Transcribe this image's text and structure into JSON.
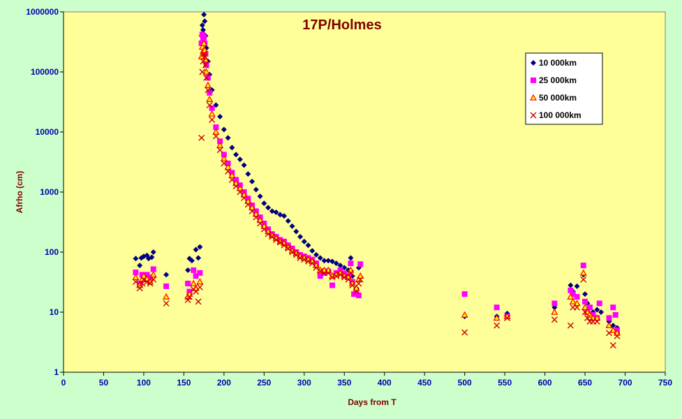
{
  "chart_data": {
    "type": "scatter",
    "title": "17P/Holmes",
    "xlabel": "Days from T",
    "ylabel": "Afrho (cm)",
    "xlim": [
      0,
      750
    ],
    "ylim": [
      1,
      1000000
    ],
    "yscale": "log",
    "x_ticks": [
      0,
      50,
      100,
      150,
      200,
      250,
      300,
      350,
      400,
      450,
      500,
      550,
      600,
      650,
      700,
      750
    ],
    "y_ticks": [
      1,
      10,
      100,
      1000,
      10000,
      100000,
      1000000
    ],
    "legend_position": "top-right",
    "grid": false,
    "background_color": "#ffff99",
    "page_color": "#ccffcc",
    "series": [
      {
        "name": "10 000km",
        "marker": "diamond",
        "color": "#000080",
        "points": [
          [
            90,
            78
          ],
          [
            95,
            60
          ],
          [
            97,
            80
          ],
          [
            100,
            85
          ],
          [
            104,
            88
          ],
          [
            106,
            78
          ],
          [
            110,
            82
          ],
          [
            112,
            100
          ],
          [
            128,
            42
          ],
          [
            155,
            50
          ],
          [
            157,
            78
          ],
          [
            160,
            72
          ],
          [
            165,
            110
          ],
          [
            168,
            80
          ],
          [
            170,
            122
          ],
          [
            172,
            400000
          ],
          [
            173,
            600000
          ],
          [
            174,
            500000
          ],
          [
            175,
            900000
          ],
          [
            176,
            700000
          ],
          [
            177,
            400000
          ],
          [
            178,
            250000
          ],
          [
            180,
            150000
          ],
          [
            182,
            90000
          ],
          [
            185,
            50000
          ],
          [
            190,
            28000
          ],
          [
            195,
            18000
          ],
          [
            200,
            11000
          ],
          [
            205,
            8000
          ],
          [
            210,
            5500
          ],
          [
            215,
            4200
          ],
          [
            220,
            3500
          ],
          [
            225,
            2800
          ],
          [
            230,
            2000
          ],
          [
            235,
            1500
          ],
          [
            240,
            1100
          ],
          [
            245,
            850
          ],
          [
            250,
            650
          ],
          [
            255,
            550
          ],
          [
            260,
            480
          ],
          [
            265,
            460
          ],
          [
            270,
            420
          ],
          [
            275,
            400
          ],
          [
            280,
            330
          ],
          [
            285,
            270
          ],
          [
            290,
            220
          ],
          [
            295,
            180
          ],
          [
            300,
            150
          ],
          [
            305,
            130
          ],
          [
            310,
            105
          ],
          [
            315,
            90
          ],
          [
            320,
            80
          ],
          [
            325,
            72
          ],
          [
            330,
            72
          ],
          [
            335,
            70
          ],
          [
            340,
            65
          ],
          [
            345,
            60
          ],
          [
            350,
            55
          ],
          [
            355,
            50
          ],
          [
            358,
            80
          ],
          [
            360,
            40
          ],
          [
            365,
            25
          ],
          [
            368,
            55
          ],
          [
            370,
            60
          ],
          [
            500,
            8.5
          ],
          [
            540,
            8.5
          ],
          [
            553,
            9.5
          ],
          [
            612,
            12
          ],
          [
            632,
            28
          ],
          [
            635,
            22
          ],
          [
            640,
            27
          ],
          [
            648,
            42
          ],
          [
            650,
            20
          ],
          [
            653,
            14
          ],
          [
            656,
            12
          ],
          [
            660,
            10
          ],
          [
            665,
            11
          ],
          [
            670,
            10
          ],
          [
            680,
            7
          ],
          [
            685,
            6
          ],
          [
            690,
            5.5
          ]
        ]
      },
      {
        "name": "25 000km",
        "marker": "square",
        "color": "#ff00ff",
        "points": [
          [
            90,
            46
          ],
          [
            95,
            30
          ],
          [
            98,
            42
          ],
          [
            100,
            38
          ],
          [
            104,
            42
          ],
          [
            108,
            38
          ],
          [
            112,
            52
          ],
          [
            128,
            27
          ],
          [
            155,
            30
          ],
          [
            157,
            22
          ],
          [
            162,
            50
          ],
          [
            165,
            40
          ],
          [
            170,
            45
          ],
          [
            172,
            300000
          ],
          [
            173,
            420000
          ],
          [
            174,
            350000
          ],
          [
            175,
            380000
          ],
          [
            176,
            300000
          ],
          [
            177,
            200000
          ],
          [
            178,
            130000
          ],
          [
            180,
            80000
          ],
          [
            182,
            45000
          ],
          [
            185,
            25000
          ],
          [
            190,
            12000
          ],
          [
            195,
            7000
          ],
          [
            200,
            4200
          ],
          [
            205,
            3000
          ],
          [
            210,
            2100
          ],
          [
            215,
            1600
          ],
          [
            220,
            1300
          ],
          [
            225,
            1000
          ],
          [
            230,
            780
          ],
          [
            235,
            600
          ],
          [
            240,
            480
          ],
          [
            245,
            380
          ],
          [
            250,
            300
          ],
          [
            255,
            240
          ],
          [
            260,
            200
          ],
          [
            265,
            180
          ],
          [
            270,
            160
          ],
          [
            275,
            150
          ],
          [
            280,
            130
          ],
          [
            285,
            115
          ],
          [
            290,
            100
          ],
          [
            295,
            90
          ],
          [
            300,
            85
          ],
          [
            305,
            80
          ],
          [
            310,
            75
          ],
          [
            315,
            65
          ],
          [
            320,
            40
          ],
          [
            325,
            45
          ],
          [
            330,
            48
          ],
          [
            335,
            28
          ],
          [
            340,
            45
          ],
          [
            345,
            50
          ],
          [
            350,
            44
          ],
          [
            355,
            40
          ],
          [
            358,
            65
          ],
          [
            360,
            32
          ],
          [
            362,
            20
          ],
          [
            365,
            20
          ],
          [
            368,
            19
          ],
          [
            370,
            63
          ],
          [
            500,
            20
          ],
          [
            540,
            12
          ],
          [
            553,
            8.5
          ],
          [
            612,
            14
          ],
          [
            632,
            23
          ],
          [
            635,
            20
          ],
          [
            640,
            18
          ],
          [
            648,
            60
          ],
          [
            650,
            15
          ],
          [
            653,
            10
          ],
          [
            656,
            12
          ],
          [
            660,
            9
          ],
          [
            665,
            8
          ],
          [
            668,
            14
          ],
          [
            680,
            8
          ],
          [
            685,
            12
          ],
          [
            688,
            9
          ],
          [
            690,
            5
          ]
        ]
      },
      {
        "name": "50 000km",
        "marker": "triangle",
        "color": "#ff0000",
        "points": [
          [
            90,
            38
          ],
          [
            95,
            28
          ],
          [
            98,
            35
          ],
          [
            100,
            40
          ],
          [
            104,
            36
          ],
          [
            108,
            32
          ],
          [
            112,
            42
          ],
          [
            128,
            18
          ],
          [
            155,
            18
          ],
          [
            157,
            20
          ],
          [
            162,
            30
          ],
          [
            165,
            25
          ],
          [
            170,
            32
          ],
          [
            172,
            180000
          ],
          [
            173,
            260000
          ],
          [
            174,
            220000
          ],
          [
            175,
            300000
          ],
          [
            176,
            230000
          ],
          [
            177,
            160000
          ],
          [
            178,
            100000
          ],
          [
            180,
            60000
          ],
          [
            182,
            35000
          ],
          [
            185,
            20000
          ],
          [
            190,
            10000
          ],
          [
            195,
            6000
          ],
          [
            200,
            3600
          ],
          [
            205,
            2600
          ],
          [
            210,
            1900
          ],
          [
            215,
            1400
          ],
          [
            220,
            1150
          ],
          [
            225,
            900
          ],
          [
            230,
            700
          ],
          [
            235,
            550
          ],
          [
            240,
            430
          ],
          [
            245,
            340
          ],
          [
            250,
            270
          ],
          [
            255,
            220
          ],
          [
            260,
            190
          ],
          [
            265,
            170
          ],
          [
            270,
            150
          ],
          [
            275,
            140
          ],
          [
            280,
            120
          ],
          [
            285,
            105
          ],
          [
            290,
            95
          ],
          [
            295,
            85
          ],
          [
            300,
            80
          ],
          [
            305,
            75
          ],
          [
            310,
            70
          ],
          [
            315,
            60
          ],
          [
            320,
            50
          ],
          [
            325,
            50
          ],
          [
            330,
            50
          ],
          [
            335,
            40
          ],
          [
            340,
            42
          ],
          [
            345,
            45
          ],
          [
            350,
            40
          ],
          [
            355,
            38
          ],
          [
            358,
            50
          ],
          [
            360,
            30
          ],
          [
            365,
            25
          ],
          [
            368,
            35
          ],
          [
            370,
            40
          ],
          [
            500,
            9
          ],
          [
            540,
            8
          ],
          [
            553,
            8.5
          ],
          [
            612,
            10
          ],
          [
            632,
            18
          ],
          [
            635,
            15
          ],
          [
            640,
            14
          ],
          [
            648,
            45
          ],
          [
            650,
            12
          ],
          [
            653,
            10
          ],
          [
            656,
            9
          ],
          [
            660,
            8
          ],
          [
            665,
            8
          ],
          [
            680,
            6
          ],
          [
            685,
            5
          ],
          [
            690,
            4.5
          ]
        ]
      },
      {
        "name": "100 000km",
        "marker": "x",
        "color": "#cc0000",
        "points": [
          [
            90,
            32
          ],
          [
            95,
            25
          ],
          [
            98,
            30
          ],
          [
            100,
            35
          ],
          [
            104,
            32
          ],
          [
            108,
            30
          ],
          [
            112,
            35
          ],
          [
            128,
            14
          ],
          [
            155,
            16
          ],
          [
            157,
            18
          ],
          [
            162,
            24
          ],
          [
            165,
            22
          ],
          [
            168,
            15
          ],
          [
            170,
            26
          ],
          [
            172,
            8000
          ],
          [
            173,
            100000
          ],
          [
            174,
            150000
          ],
          [
            175,
            200000
          ],
          [
            176,
            180000
          ],
          [
            177,
            130000
          ],
          [
            178,
            80000
          ],
          [
            180,
            50000
          ],
          [
            182,
            28000
          ],
          [
            185,
            16000
          ],
          [
            190,
            8500
          ],
          [
            195,
            5000
          ],
          [
            200,
            3000
          ],
          [
            205,
            2200
          ],
          [
            210,
            1600
          ],
          [
            215,
            1250
          ],
          [
            220,
            1000
          ],
          [
            225,
            800
          ],
          [
            230,
            620
          ],
          [
            235,
            480
          ],
          [
            240,
            380
          ],
          [
            245,
            300
          ],
          [
            250,
            240
          ],
          [
            255,
            200
          ],
          [
            260,
            180
          ],
          [
            265,
            160
          ],
          [
            270,
            145
          ],
          [
            275,
            130
          ],
          [
            280,
            115
          ],
          [
            285,
            100
          ],
          [
            290,
            90
          ],
          [
            295,
            80
          ],
          [
            300,
            75
          ],
          [
            305,
            70
          ],
          [
            310,
            65
          ],
          [
            315,
            55
          ],
          [
            320,
            48
          ],
          [
            325,
            45
          ],
          [
            330,
            45
          ],
          [
            335,
            38
          ],
          [
            340,
            40
          ],
          [
            345,
            42
          ],
          [
            350,
            38
          ],
          [
            355,
            35
          ],
          [
            358,
            45
          ],
          [
            360,
            28
          ],
          [
            365,
            22
          ],
          [
            368,
            30
          ],
          [
            370,
            35
          ],
          [
            500,
            4.6
          ],
          [
            540,
            6
          ],
          [
            553,
            8
          ],
          [
            612,
            7.5
          ],
          [
            632,
            6
          ],
          [
            635,
            12
          ],
          [
            640,
            12
          ],
          [
            648,
            35
          ],
          [
            650,
            10
          ],
          [
            653,
            8
          ],
          [
            656,
            7
          ],
          [
            660,
            7
          ],
          [
            665,
            7
          ],
          [
            680,
            4.5
          ],
          [
            685,
            2.8
          ],
          [
            690,
            4
          ]
        ]
      }
    ]
  }
}
